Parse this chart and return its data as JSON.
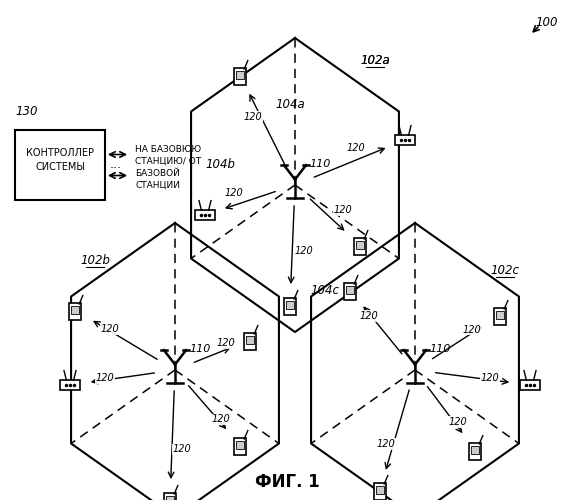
{
  "title": "ФИГ. 1",
  "bg_color": "#ffffff",
  "fig_label": "100",
  "cell_labels": {
    "top": "102a",
    "left": "102b",
    "right": "102c"
  },
  "sector_labels": {
    "top": "104a",
    "top_left": "104b",
    "center": "104c"
  },
  "bs_label": "110",
  "ue_label": "120",
  "controller_label": "130",
  "controller_text": "КОНТРОЛЛЕР\nСИСТЕМЫ",
  "bs_text_line1": "НА БАЗОВЮЮ",
  "bs_text_line2": "СТАНЦИЮ/ ОТ",
  "bs_text_line3": "БАЗОВОЙ",
  "bs_text_line4": "СТАНЦИИ",
  "figsize": [
    5.73,
    5.0
  ],
  "dpi": 100
}
